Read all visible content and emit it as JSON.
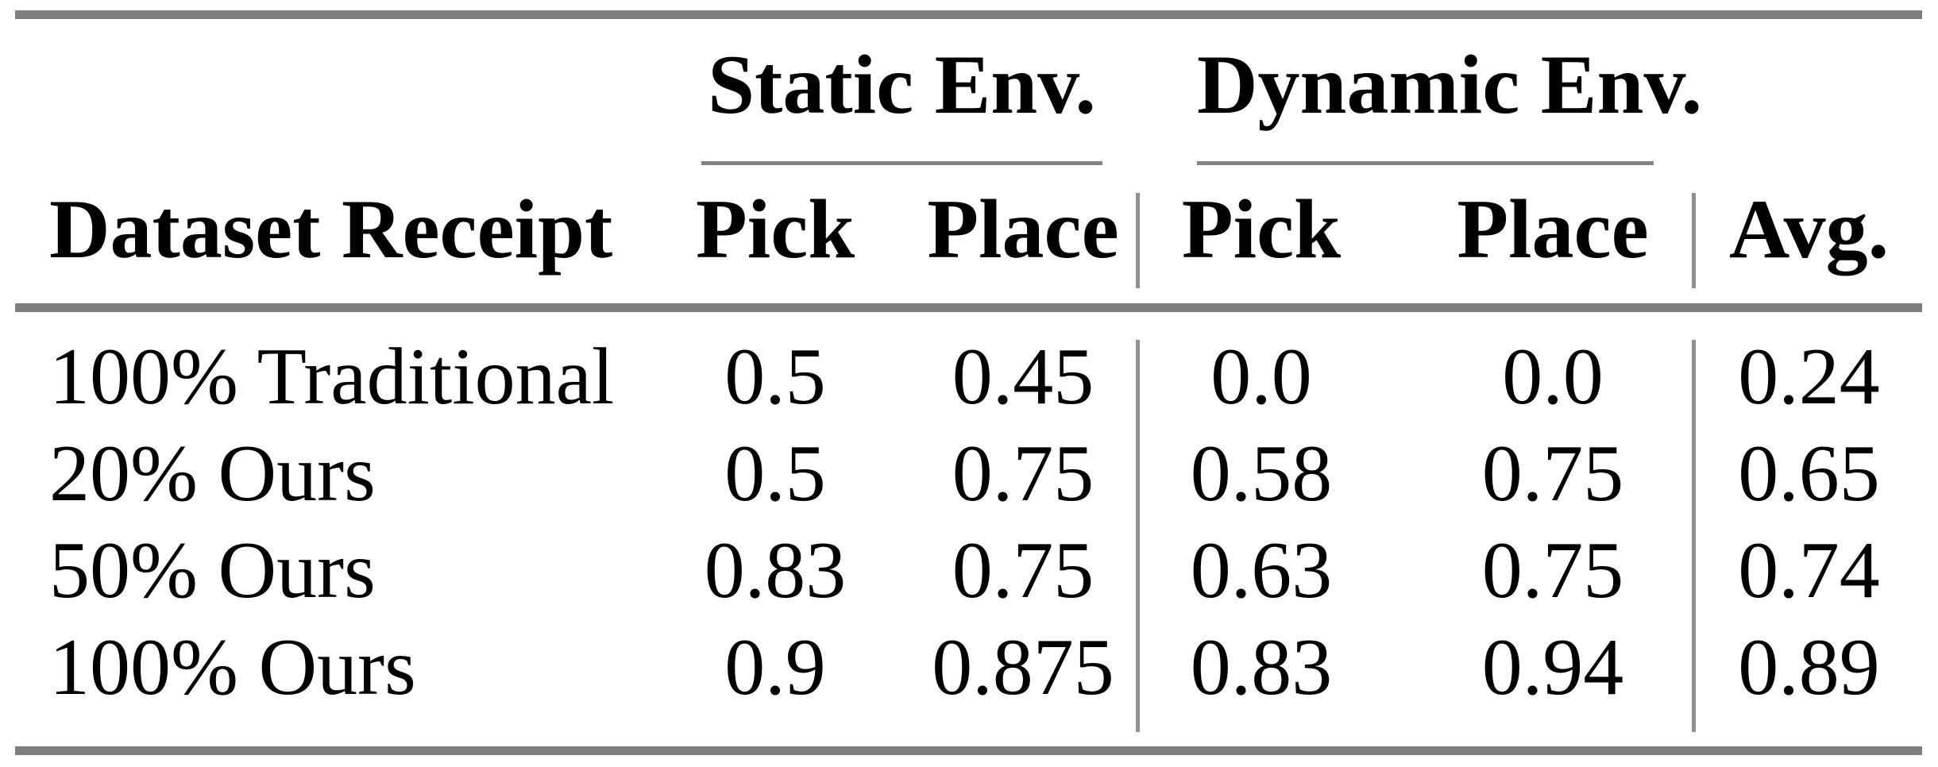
{
  "table": {
    "groups": [
      {
        "label": "Static Env."
      },
      {
        "label": "Dynamic Env."
      }
    ],
    "columns": [
      "Dataset Receipt",
      "Pick",
      "Place",
      "Pick",
      "Place",
      "Avg."
    ],
    "rows": [
      {
        "label": "100% Traditional",
        "values": [
          "0.5",
          "0.45",
          "0.0",
          "0.0",
          "0.24"
        ]
      },
      {
        "label": "20% Ours",
        "values": [
          "0.5",
          "0.75",
          "0.58",
          "0.75",
          "0.65"
        ]
      },
      {
        "label": "50% Ours",
        "values": [
          "0.83",
          "0.75",
          "0.63",
          "0.75",
          "0.74"
        ]
      },
      {
        "label": "100% Ours",
        "values": [
          "0.9",
          "0.875",
          "0.83",
          "0.94",
          "0.89"
        ]
      }
    ],
    "colors": {
      "thick_rule": "#7e7e7e",
      "thin_rule": "#8f8f8f",
      "spanner_rule": "#848484",
      "text": "#000000",
      "background": "#ffffff"
    }
  },
  "chart_data": {
    "type": "table",
    "title": "",
    "column_groups": [
      "Static Env.",
      "Dynamic Env."
    ],
    "columns": [
      "Dataset Receipt",
      "Static Env. Pick",
      "Static Env. Place",
      "Dynamic Env. Pick",
      "Dynamic Env. Place",
      "Avg."
    ],
    "rows": [
      [
        "100% Traditional",
        0.5,
        0.45,
        0.0,
        0.0,
        0.24
      ],
      [
        "20% Ours",
        0.5,
        0.75,
        0.58,
        0.75,
        0.65
      ],
      [
        "50% Ours",
        0.83,
        0.75,
        0.63,
        0.75,
        0.74
      ],
      [
        "100% Ours",
        0.9,
        0.875,
        0.83,
        0.94,
        0.89
      ]
    ]
  }
}
